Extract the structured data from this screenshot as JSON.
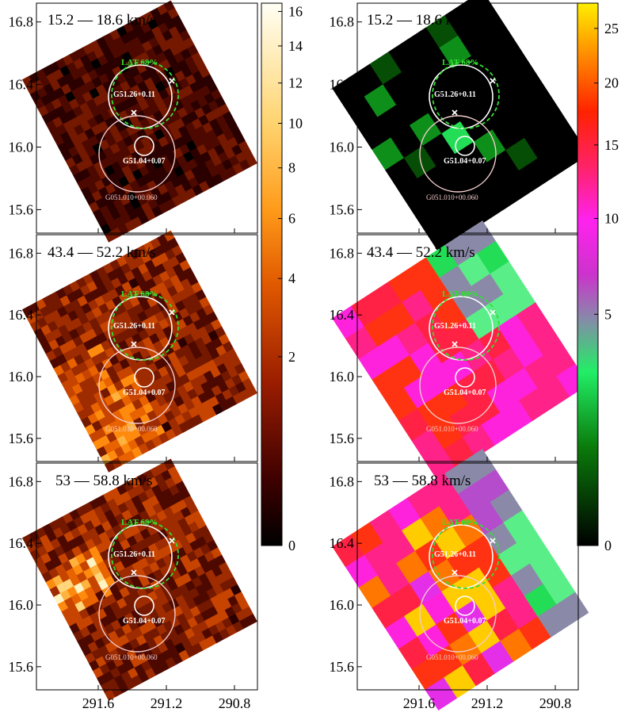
{
  "figure": {
    "x_ticks": [
      "291.6",
      "291.2",
      "290.8"
    ],
    "y_ticks": [
      "16.8",
      "16.4",
      "16.0",
      "15.6"
    ],
    "panel_labels": [
      "15.2 — 18.6 km/s",
      "43.4 — 52.2 km/s",
      "53 — 58.8 km/s"
    ],
    "marker_labels": {
      "lat": "LAT 68%",
      "g5126": "G51.26+0.11",
      "g5104": "G51.04+0.07",
      "g051010": "G051.010+00.060"
    }
  },
  "colorbars": {
    "left": {
      "ticks": [
        "0",
        "2",
        "4",
        "6",
        "8",
        "10",
        "12",
        "14",
        "16"
      ]
    },
    "right": {
      "ticks": [
        "0",
        "5",
        "10",
        "15",
        "20",
        "25"
      ]
    }
  },
  "colors": {
    "lat_circle": "#33dd33",
    "circle_white": "#ffffff",
    "circle_pink": "#f3cccc",
    "map_bg": "#000000",
    "frame": "#000000"
  },
  "chart_data": [
    {
      "type": "heatmap",
      "colormap": "afmhot",
      "x": {
        "ticks": [
          291.6,
          291.2,
          290.8
        ],
        "range": [
          291.95,
          290.6
        ],
        "reversed": true
      },
      "y": {
        "ticks": [
          15.6,
          16.0,
          16.4,
          16.8
        ],
        "range": [
          15.45,
          16.92
        ]
      },
      "panels": [
        {
          "label": "15.2 — 18.6 km/s",
          "peak": 1.5
        },
        {
          "label": "43.4 — 52.2 km/s",
          "peak": 7.0
        },
        {
          "label": "53 — 58.8 km/s",
          "peak": 11.0
        }
      ],
      "colorbar": {
        "min": 0,
        "max": 16.5,
        "ticks": [
          0,
          2,
          4,
          6,
          8,
          10,
          12,
          14,
          16
        ],
        "scale": "sqrt"
      }
    },
    {
      "type": "heatmap",
      "colormap": "green-magenta-red-yellow",
      "x": {
        "ticks": [
          291.6,
          291.2,
          290.8
        ],
        "range": [
          291.95,
          290.6
        ],
        "reversed": true
      },
      "y": {
        "ticks": [
          15.6,
          16.0,
          16.4,
          16.8
        ],
        "range": [
          15.45,
          16.92
        ]
      },
      "panels": [
        {
          "label": "15.2 — 18.6 km/s",
          "peak": 3.0
        },
        {
          "label": "43.4 — 52.2 km/s",
          "peak": 17.0
        },
        {
          "label": "53 — 58.8 km/s",
          "peak": 24.0
        }
      ],
      "colorbar": {
        "min": 0,
        "max": 27.5,
        "ticks": [
          0,
          5,
          10,
          15,
          20,
          25
        ],
        "scale": "sqrt"
      }
    }
  ]
}
